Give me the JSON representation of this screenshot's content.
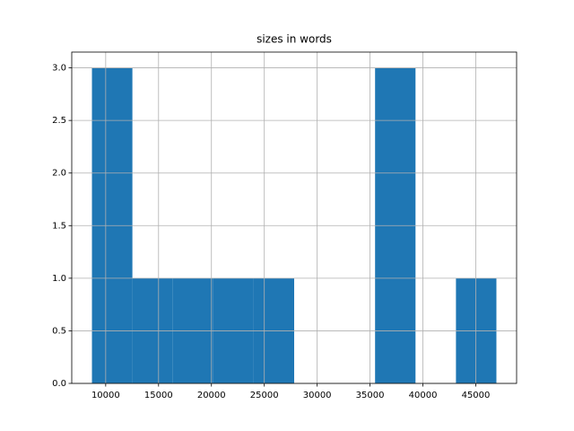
{
  "chart_data": {
    "type": "histogram",
    "title": "sizes in words",
    "bins": [
      8700,
      12525,
      16350,
      20175,
      24000,
      27825,
      31650,
      35475,
      39300,
      43125,
      46950
    ],
    "values": [
      3,
      1,
      1,
      1,
      1,
      0,
      0,
      3,
      0,
      1
    ],
    "color": "#1f77b4",
    "xlim": [
      6790,
      48860
    ],
    "ylim": [
      0,
      3.15
    ],
    "xticks": [
      10000,
      15000,
      20000,
      25000,
      30000,
      35000,
      40000,
      45000
    ],
    "yticks": [
      {
        "value": 0,
        "label": "0.0"
      },
      {
        "value": 0.5,
        "label": "0.5"
      },
      {
        "value": 1,
        "label": "1.0"
      },
      {
        "value": 1.5,
        "label": "1.5"
      },
      {
        "value": 2,
        "label": "2.0"
      },
      {
        "value": 2.5,
        "label": "2.5"
      },
      {
        "value": 3,
        "label": "3.0"
      }
    ],
    "grid": true
  }
}
